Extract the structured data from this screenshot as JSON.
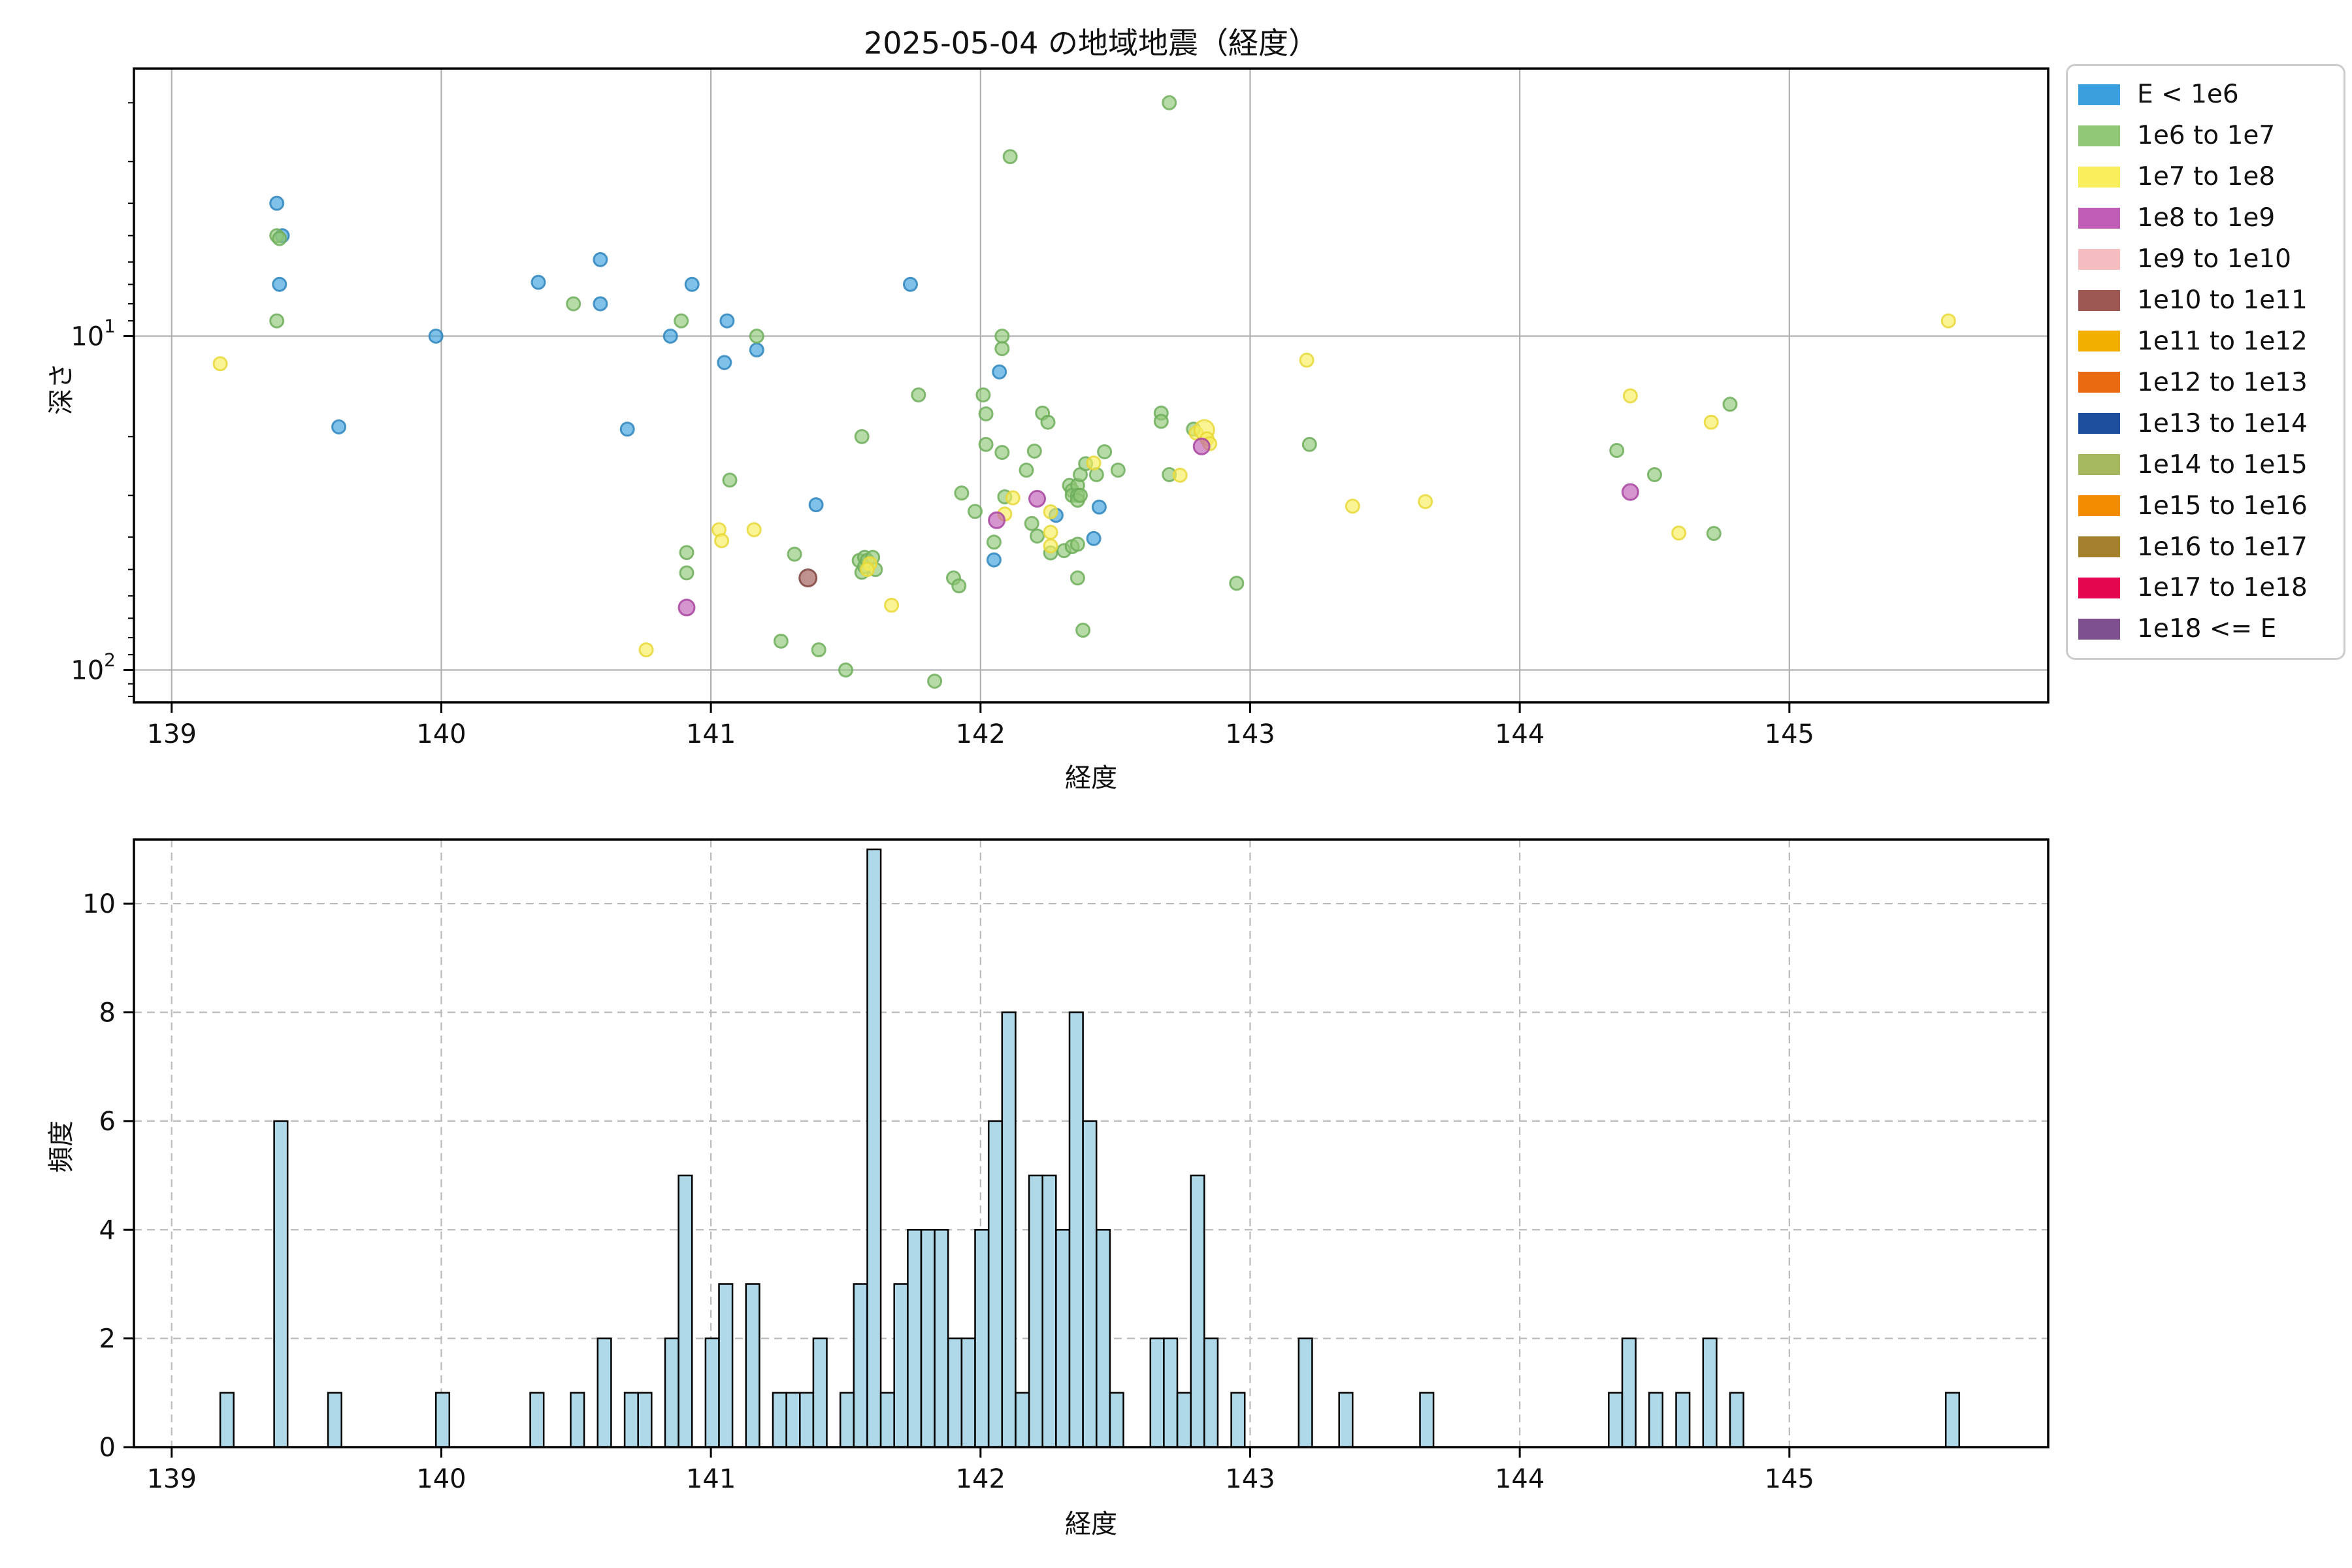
{
  "title": "2025-05-04 の地域地震（経度）",
  "legend": {
    "items": [
      {
        "label": "E < 1e6",
        "color": "#3A9FDC"
      },
      {
        "label": "1e6 to 1e7",
        "color": "#90C878"
      },
      {
        "label": "1e7 to 1e8",
        "color": "#F9EE5C"
      },
      {
        "label": "1e8 to 1e9",
        "color": "#BF5CB5"
      },
      {
        "label": "1e9 to 1e10",
        "color": "#F5BDC0"
      },
      {
        "label": "1e10 to 1e11",
        "color": "#9D5853"
      },
      {
        "label": "1e11 to 1e12",
        "color": "#F3AF00"
      },
      {
        "label": "1e12 to 1e13",
        "color": "#E96A10"
      },
      {
        "label": "1e13 to 1e14",
        "color": "#1E4F9C"
      },
      {
        "label": "1e14 to 1e15",
        "color": "#A5B75F"
      },
      {
        "label": "1e15 to 1e16",
        "color": "#F28C00"
      },
      {
        "label": "1e16 to 1e17",
        "color": "#A5812D"
      },
      {
        "label": "1e17 to 1e18",
        "color": "#E4074F"
      },
      {
        "label": "1e18 <= E",
        "color": "#7E5090"
      }
    ]
  },
  "chart_data": [
    {
      "type": "scatter",
      "title": "2025-05-04 の地域地震（経度）",
      "xlabel": "経度",
      "ylabel": "深さ",
      "xlim": [
        138.86,
        145.96
      ],
      "y_scale": "log-inverted-depth",
      "ylim_depth": [
        1.58,
        125
      ],
      "xticks": [
        139,
        140,
        141,
        142,
        143,
        144,
        145
      ],
      "yticks": [
        {
          "value": 10,
          "base": "10",
          "exp": "1"
        },
        {
          "value": 100,
          "base": "10",
          "exp": "2"
        }
      ],
      "yminor": [
        2,
        3,
        4,
        5,
        6,
        7,
        8,
        9,
        20,
        30,
        40,
        50,
        60,
        70,
        80,
        90,
        110,
        120
      ],
      "grid": "solid",
      "class_colors": {
        "b": {
          "fill": "#3A9FDC",
          "edge": "#2E85BD"
        },
        "g": {
          "fill": "#90C878",
          "edge": "#6FAE5C"
        },
        "y": {
          "fill": "#F9EE5C",
          "edge": "#E8D83A"
        },
        "m": {
          "fill": "#BF5CB5",
          "edge": "#A844A0"
        },
        "br": {
          "fill": "#9D5853",
          "edge": "#7E4440"
        }
      },
      "marker_alpha": 0.65,
      "marker_radius": 10,
      "points": [
        [
          139.39,
          4.0,
          "b"
        ],
        [
          139.41,
          5.0,
          "b"
        ],
        [
          139.4,
          7.0,
          "b"
        ],
        [
          139.62,
          18.7,
          "b"
        ],
        [
          139.98,
          10.0,
          "b"
        ],
        [
          140.36,
          6.9,
          "b"
        ],
        [
          140.59,
          5.9,
          "b"
        ],
        [
          140.59,
          8.0,
          "b"
        ],
        [
          140.69,
          19.0,
          "b"
        ],
        [
          140.85,
          10.0,
          "b"
        ],
        [
          140.93,
          7.0,
          "b"
        ],
        [
          141.05,
          12.0,
          "b"
        ],
        [
          141.06,
          9.0,
          "b"
        ],
        [
          141.17,
          11.0,
          "b"
        ],
        [
          141.39,
          32.0,
          "b"
        ],
        [
          141.74,
          7.0,
          "b"
        ],
        [
          142.07,
          12.8,
          "b"
        ],
        [
          142.05,
          46.8,
          "b"
        ],
        [
          142.28,
          34.4,
          "b"
        ],
        [
          142.42,
          40.4,
          "b"
        ],
        [
          142.44,
          32.5,
          "b"
        ],
        [
          139.39,
          5.0,
          "g"
        ],
        [
          139.4,
          5.1,
          "g"
        ],
        [
          139.39,
          9.0,
          "g"
        ],
        [
          140.49,
          8.0,
          "g"
        ],
        [
          140.89,
          9.0,
          "g"
        ],
        [
          140.91,
          44.5,
          "g"
        ],
        [
          140.91,
          51.2,
          "g"
        ],
        [
          141.07,
          27.0,
          "g"
        ],
        [
          141.17,
          10.0,
          "g"
        ],
        [
          141.26,
          82.0,
          "g"
        ],
        [
          141.31,
          45.0,
          "g"
        ],
        [
          141.4,
          87.0,
          "g"
        ],
        [
          141.5,
          100.0,
          "g"
        ],
        [
          141.55,
          47.0,
          "g"
        ],
        [
          141.56,
          51.0,
          "g"
        ],
        [
          141.57,
          46.0,
          "g"
        ],
        [
          141.57,
          49.0,
          "g"
        ],
        [
          141.58,
          47.0,
          "g"
        ],
        [
          141.6,
          46.0,
          "g"
        ],
        [
          141.61,
          50.0,
          "g"
        ],
        [
          141.56,
          20.0,
          "g"
        ],
        [
          141.77,
          15.0,
          "g"
        ],
        [
          141.83,
          108.0,
          "g"
        ],
        [
          141.9,
          53.0,
          "g"
        ],
        [
          141.92,
          56.0,
          "g"
        ],
        [
          141.93,
          29.5,
          "g"
        ],
        [
          141.98,
          33.5,
          "g"
        ],
        [
          142.01,
          15.0,
          "g"
        ],
        [
          142.02,
          17.1,
          "g"
        ],
        [
          142.02,
          21.1,
          "g"
        ],
        [
          142.05,
          41.4,
          "g"
        ],
        [
          142.08,
          10.0,
          "g"
        ],
        [
          142.08,
          10.9,
          "g"
        ],
        [
          142.08,
          22.3,
          "g"
        ],
        [
          142.09,
          30.3,
          "g"
        ],
        [
          142.11,
          2.9,
          "g"
        ],
        [
          142.17,
          25.2,
          "g"
        ],
        [
          142.19,
          36.4,
          "g"
        ],
        [
          142.2,
          22.1,
          "g"
        ],
        [
          142.21,
          39.7,
          "g"
        ],
        [
          142.23,
          17.0,
          "g"
        ],
        [
          142.25,
          18.1,
          "g"
        ],
        [
          142.26,
          44.6,
          "g"
        ],
        [
          142.31,
          43.9,
          "g"
        ],
        [
          142.33,
          28.0,
          "g"
        ],
        [
          142.34,
          29.0,
          "g"
        ],
        [
          142.34,
          30.0,
          "g"
        ],
        [
          142.34,
          42.7,
          "g"
        ],
        [
          142.36,
          28.0,
          "g"
        ],
        [
          142.36,
          30.0,
          "g"
        ],
        [
          142.36,
          31.0,
          "g"
        ],
        [
          142.36,
          42.0,
          "g"
        ],
        [
          142.36,
          53.0,
          "g"
        ],
        [
          142.37,
          30.0,
          "g"
        ],
        [
          142.37,
          26.0,
          "g"
        ],
        [
          142.38,
          76.0,
          "g"
        ],
        [
          142.39,
          24.1,
          "g"
        ],
        [
          142.43,
          26.0,
          "g"
        ],
        [
          142.46,
          22.2,
          "g"
        ],
        [
          142.51,
          25.2,
          "g"
        ],
        [
          142.67,
          17.0,
          "g"
        ],
        [
          142.67,
          18.0,
          "g"
        ],
        [
          142.7,
          2.0,
          "g"
        ],
        [
          142.7,
          26.0,
          "g"
        ],
        [
          142.79,
          19.0,
          "g"
        ],
        [
          142.95,
          55.0,
          "g"
        ],
        [
          143.22,
          21.1,
          "g"
        ],
        [
          144.36,
          22.0,
          "g"
        ],
        [
          144.5,
          26.0,
          "g"
        ],
        [
          144.72,
          39.0,
          "g"
        ],
        [
          144.78,
          16.0,
          "g"
        ],
        [
          139.18,
          12.1,
          "y"
        ],
        [
          140.76,
          87.0,
          "y"
        ],
        [
          141.03,
          38.0,
          "y"
        ],
        [
          141.04,
          41.0,
          "y"
        ],
        [
          141.16,
          38.0,
          "y"
        ],
        [
          141.59,
          48.0,
          "y"
        ],
        [
          141.58,
          50.0,
          "y"
        ],
        [
          141.67,
          64.0,
          "y"
        ],
        [
          142.09,
          34.1,
          "y"
        ],
        [
          142.12,
          30.5,
          "y"
        ],
        [
          142.26,
          33.6,
          "y"
        ],
        [
          142.26,
          38.7,
          "y"
        ],
        [
          142.26,
          42.5,
          "y"
        ],
        [
          142.42,
          24.0,
          "y"
        ],
        [
          142.74,
          26.1,
          "y"
        ],
        [
          142.8,
          19.5,
          "y"
        ],
        [
          142.83,
          19.1,
          "y",
          15
        ],
        [
          142.84,
          20.3,
          "y"
        ],
        [
          142.85,
          21.0,
          "y"
        ],
        [
          143.21,
          11.8,
          "y"
        ],
        [
          143.38,
          32.3,
          "y"
        ],
        [
          143.65,
          31.3,
          "y"
        ],
        [
          144.41,
          15.1,
          "y"
        ],
        [
          144.59,
          38.9,
          "y"
        ],
        [
          144.71,
          18.1,
          "y"
        ],
        [
          145.59,
          9.0,
          "y"
        ],
        [
          140.91,
          65.0,
          "m",
          12
        ],
        [
          142.06,
          35.6,
          "m",
          12
        ],
        [
          142.21,
          30.7,
          "m",
          12
        ],
        [
          142.82,
          21.4,
          "m",
          12
        ],
        [
          144.41,
          29.3,
          "m",
          12
        ],
        [
          141.36,
          53.0,
          "br",
          13
        ]
      ]
    },
    {
      "type": "bar",
      "xlabel": "経度",
      "ylabel": "頻度",
      "xlim": [
        138.86,
        145.96
      ],
      "ylim": [
        0,
        11.18
      ],
      "xticks": [
        139,
        140,
        141,
        142,
        143,
        144,
        145
      ],
      "yticks": [
        0,
        2,
        4,
        6,
        8,
        10
      ],
      "grid": "dashed",
      "bar_fill": "#AFD8E8",
      "bar_edge": "#000000",
      "bin_width": 0.05,
      "bars": [
        [
          139.18,
          1
        ],
        [
          139.38,
          6
        ],
        [
          139.58,
          1
        ],
        [
          139.98,
          1
        ],
        [
          140.33,
          1
        ],
        [
          140.48,
          1
        ],
        [
          140.58,
          2
        ],
        [
          140.68,
          1
        ],
        [
          140.73,
          1
        ],
        [
          140.83,
          2
        ],
        [
          140.88,
          5
        ],
        [
          140.98,
          2
        ],
        [
          141.03,
          3
        ],
        [
          141.13,
          3
        ],
        [
          141.23,
          1
        ],
        [
          141.28,
          1
        ],
        [
          141.33,
          1
        ],
        [
          141.38,
          2
        ],
        [
          141.48,
          1
        ],
        [
          141.53,
          3
        ],
        [
          141.58,
          11
        ],
        [
          141.63,
          1
        ],
        [
          141.68,
          3
        ],
        [
          141.73,
          4
        ],
        [
          141.78,
          4
        ],
        [
          141.83,
          4
        ],
        [
          141.88,
          2
        ],
        [
          141.93,
          2
        ],
        [
          141.98,
          4
        ],
        [
          142.03,
          6
        ],
        [
          142.08,
          8
        ],
        [
          142.13,
          1
        ],
        [
          142.18,
          5
        ],
        [
          142.23,
          5
        ],
        [
          142.28,
          4
        ],
        [
          142.33,
          8
        ],
        [
          142.38,
          6
        ],
        [
          142.43,
          4
        ],
        [
          142.48,
          1
        ],
        [
          142.63,
          2
        ],
        [
          142.68,
          2
        ],
        [
          142.73,
          1
        ],
        [
          142.78,
          5
        ],
        [
          142.83,
          2
        ],
        [
          142.93,
          1
        ],
        [
          143.18,
          2
        ],
        [
          143.33,
          1
        ],
        [
          143.63,
          1
        ],
        [
          144.33,
          1
        ],
        [
          144.38,
          2
        ],
        [
          144.48,
          1
        ],
        [
          144.58,
          1
        ],
        [
          144.68,
          2
        ],
        [
          144.78,
          1
        ],
        [
          145.58,
          1
        ]
      ]
    }
  ]
}
